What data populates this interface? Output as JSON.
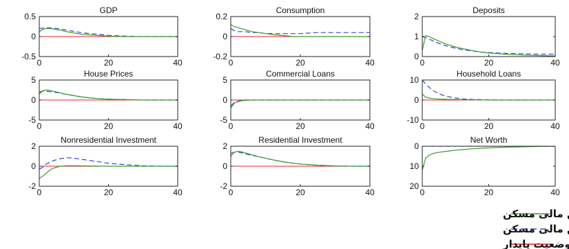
{
  "colors": {
    "with_housing_finance": "#3a9a2e",
    "without_housing_finance": "#3446c8",
    "steady_state": "#e8202a",
    "axis": "#222222"
  },
  "legend": {
    "entries": [
      {
        "label": "مدل با وجود تأمین مالی مسکن",
        "style": "solid",
        "color": "#3a9a2e"
      },
      {
        "label": "مدل بدون وجود تأمین مالی مسکن",
        "style": "dashed",
        "color": "#3446c8"
      },
      {
        "label": "وضعیت پایدار",
        "style": "solid",
        "color": "#e8202a"
      }
    ]
  },
  "chart_data": [
    {
      "type": "line",
      "title": "GDP",
      "xlim": [
        0,
        40
      ],
      "ylim": [
        -0.5,
        0.5
      ],
      "xticks": [
        "0",
        "20",
        "40"
      ],
      "yticks": [
        "0.5",
        "0",
        "-0.5"
      ],
      "series": [
        {
          "key": "with",
          "x": [
            0,
            1,
            2,
            3,
            4,
            6,
            8,
            10,
            12,
            15,
            18,
            20,
            25,
            30,
            35,
            40
          ],
          "y": [
            0.12,
            0.18,
            0.2,
            0.2,
            0.19,
            0.16,
            0.12,
            0.09,
            0.06,
            0.04,
            0.02,
            0.01,
            0.0,
            0.0,
            0.0,
            0.0
          ]
        },
        {
          "key": "without",
          "x": [
            0,
            1,
            2,
            3,
            4,
            6,
            8,
            10,
            12,
            15,
            18,
            20,
            25,
            30,
            35,
            40
          ],
          "y": [
            0.2,
            0.21,
            0.22,
            0.22,
            0.21,
            0.19,
            0.16,
            0.13,
            0.1,
            0.07,
            0.05,
            0.03,
            0.01,
            0.0,
            0.0,
            0.0
          ]
        },
        {
          "key": "steady",
          "x": [
            0,
            40
          ],
          "y": [
            0,
            0
          ]
        }
      ]
    },
    {
      "type": "line",
      "title": "Consumption",
      "xlim": [
        0,
        40
      ],
      "ylim": [
        -0.2,
        0.2
      ],
      "xticks": [
        "0",
        "20",
        "40"
      ],
      "yticks": [
        "0.2",
        "0",
        "-0.2"
      ],
      "series": [
        {
          "key": "with",
          "x": [
            0,
            1,
            2,
            3,
            4,
            6,
            8,
            10,
            12,
            15,
            18,
            20,
            25,
            30,
            35,
            40
          ],
          "y": [
            0.12,
            0.1,
            0.09,
            0.08,
            0.07,
            0.05,
            0.04,
            0.03,
            0.02,
            0.01,
            0.0,
            0.0,
            0.0,
            0.0,
            0.0,
            0.0
          ]
        },
        {
          "key": "without",
          "x": [
            0,
            1,
            2,
            3,
            4,
            6,
            8,
            10,
            12,
            15,
            18,
            20,
            25,
            30,
            35,
            40
          ],
          "y": [
            0.08,
            0.06,
            0.05,
            0.05,
            0.05,
            0.04,
            0.04,
            0.03,
            0.03,
            0.03,
            0.03,
            0.03,
            0.04,
            0.04,
            0.04,
            0.04
          ]
        },
        {
          "key": "steady",
          "x": [
            0,
            40
          ],
          "y": [
            0,
            0
          ]
        }
      ]
    },
    {
      "type": "line",
      "title": "Deposits",
      "xlim": [
        0,
        40
      ],
      "ylim": [
        0,
        2
      ],
      "xticks": [
        "0",
        "20",
        "40"
      ],
      "yticks": [
        "2",
        "1",
        "0"
      ],
      "series": [
        {
          "key": "with",
          "x": [
            0,
            1,
            2,
            3,
            4,
            6,
            8,
            10,
            12,
            15,
            18,
            20,
            25,
            30,
            35,
            40
          ],
          "y": [
            0.3,
            1.05,
            1.0,
            0.92,
            0.85,
            0.7,
            0.58,
            0.48,
            0.4,
            0.3,
            0.22,
            0.18,
            0.12,
            0.08,
            0.05,
            0.03
          ]
        },
        {
          "key": "without",
          "x": [
            0,
            1,
            2,
            3,
            4,
            6,
            8,
            10,
            12,
            15,
            18,
            20,
            25,
            30,
            35,
            40
          ],
          "y": [
            1.0,
            0.95,
            0.88,
            0.8,
            0.72,
            0.6,
            0.5,
            0.42,
            0.35,
            0.28,
            0.22,
            0.2,
            0.16,
            0.14,
            0.12,
            0.12
          ]
        },
        {
          "key": "steady",
          "x": [
            0,
            40
          ],
          "y": [
            0,
            0
          ]
        }
      ]
    },
    {
      "type": "line",
      "title": "House Prices",
      "xlim": [
        0,
        40
      ],
      "ylim": [
        -5,
        5
      ],
      "xticks": [
        "0",
        "20",
        "40"
      ],
      "yticks": [
        "5",
        "0",
        "-5"
      ],
      "series": [
        {
          "key": "with",
          "x": [
            0,
            1,
            2,
            3,
            4,
            6,
            8,
            10,
            12,
            15,
            18,
            20,
            25,
            30,
            35,
            40
          ],
          "y": [
            1.5,
            2.3,
            2.5,
            2.4,
            2.2,
            1.8,
            1.4,
            1.1,
            0.8,
            0.5,
            0.3,
            0.2,
            0.1,
            0.0,
            0.0,
            0.0
          ]
        },
        {
          "key": "without",
          "x": [
            0,
            1,
            2,
            3,
            4,
            6,
            8,
            10,
            12,
            15,
            18,
            20,
            25,
            30,
            35,
            40
          ],
          "y": [
            2.0,
            2.2,
            2.2,
            2.1,
            2.0,
            1.7,
            1.4,
            1.1,
            0.8,
            0.5,
            0.3,
            0.2,
            0.1,
            0.0,
            0.0,
            0.0
          ]
        },
        {
          "key": "steady",
          "x": [
            0,
            40
          ],
          "y": [
            0,
            0
          ]
        }
      ]
    },
    {
      "type": "line",
      "title": "Commercial Loans",
      "xlim": [
        0,
        40
      ],
      "ylim": [
        -5,
        5
      ],
      "xticks": [
        "0",
        "20",
        "40"
      ],
      "yticks": [
        "5",
        "0",
        "-5"
      ],
      "series": [
        {
          "key": "with",
          "x": [
            0,
            1,
            2,
            3,
            4,
            6,
            8,
            10,
            15,
            20,
            25,
            30,
            35,
            40
          ],
          "y": [
            -2.0,
            -0.8,
            -0.4,
            -0.2,
            -0.1,
            0.0,
            0.0,
            0.0,
            0.0,
            0.0,
            0.0,
            0.0,
            0.0,
            0.0
          ]
        },
        {
          "key": "without",
          "x": [
            0,
            1,
            2,
            3,
            4,
            6,
            8,
            10,
            15,
            20,
            25,
            30,
            35,
            40
          ],
          "y": [
            -1.5,
            -0.6,
            -0.3,
            -0.1,
            0.0,
            0.0,
            0.0,
            0.0,
            0.0,
            0.0,
            0.0,
            0.0,
            0.0,
            0.0
          ]
        },
        {
          "key": "steady",
          "x": [
            0,
            40
          ],
          "y": [
            0,
            0
          ]
        }
      ]
    },
    {
      "type": "line",
      "title": "Household Loans",
      "xlim": [
        0,
        40
      ],
      "ylim": [
        -10,
        10
      ],
      "xticks": [
        "0",
        "20",
        "40"
      ],
      "yticks": [
        "10",
        "0",
        "-10"
      ],
      "series": [
        {
          "key": "with",
          "x": [
            0,
            1,
            2,
            3,
            4,
            6,
            8,
            10,
            15,
            20,
            25,
            30,
            35,
            40
          ],
          "y": [
            3.0,
            1.5,
            1.0,
            0.8,
            0.6,
            0.4,
            0.3,
            0.2,
            0.1,
            0.0,
            0.0,
            0.0,
            0.0,
            0.0
          ]
        },
        {
          "key": "without",
          "x": [
            0,
            1,
            2,
            3,
            4,
            6,
            8,
            10,
            12,
            15,
            20,
            25,
            30,
            35,
            40
          ],
          "y": [
            10,
            8,
            6.5,
            5,
            4,
            2.5,
            1.6,
            1.0,
            0.6,
            0.3,
            0.1,
            0.0,
            0.0,
            0.0,
            0.0
          ]
        },
        {
          "key": "steady",
          "x": [
            0,
            40
          ],
          "y": [
            0,
            0
          ]
        }
      ]
    },
    {
      "type": "line",
      "title": "Nonresidential Investment",
      "xlim": [
        0,
        40
      ],
      "ylim": [
        -2,
        2
      ],
      "xticks": [
        "0",
        "20",
        "40"
      ],
      "yticks": [
        "2",
        "0",
        "-2"
      ],
      "series": [
        {
          "key": "with",
          "x": [
            0,
            1,
            2,
            3,
            4,
            6,
            8,
            10,
            15,
            20,
            25,
            30,
            35,
            40
          ],
          "y": [
            -1.2,
            -1.0,
            -0.7,
            -0.4,
            -0.2,
            0.0,
            0.05,
            0.05,
            0.03,
            0.0,
            0.0,
            0.0,
            0.0,
            0.0
          ]
        },
        {
          "key": "without",
          "x": [
            0,
            1,
            2,
            3,
            4,
            6,
            8,
            10,
            12,
            15,
            18,
            20,
            25,
            30,
            35,
            40
          ],
          "y": [
            -0.3,
            -0.1,
            0.2,
            0.4,
            0.55,
            0.75,
            0.85,
            0.8,
            0.7,
            0.55,
            0.4,
            0.3,
            0.15,
            0.05,
            0.0,
            0.0
          ]
        },
        {
          "key": "steady",
          "x": [
            0,
            40
          ],
          "y": [
            0,
            0
          ]
        }
      ]
    },
    {
      "type": "line",
      "title": "Residential Investment",
      "xlim": [
        0,
        40
      ],
      "ylim": [
        -2,
        2
      ],
      "xticks": [
        "0",
        "20",
        "40"
      ],
      "yticks": [
        "2",
        "0",
        "-2"
      ],
      "series": [
        {
          "key": "with",
          "x": [
            0,
            1,
            2,
            3,
            4,
            6,
            8,
            10,
            12,
            15,
            18,
            20,
            25,
            30,
            35,
            40
          ],
          "y": [
            1.0,
            1.4,
            1.5,
            1.45,
            1.35,
            1.15,
            0.95,
            0.8,
            0.65,
            0.45,
            0.3,
            0.22,
            0.1,
            0.03,
            0.0,
            0.0
          ]
        },
        {
          "key": "without",
          "x": [
            0,
            1,
            2,
            3,
            4,
            6,
            8,
            10,
            12,
            15,
            18,
            20,
            25,
            30,
            35,
            40
          ],
          "y": [
            1.3,
            1.4,
            1.4,
            1.35,
            1.25,
            1.1,
            0.95,
            0.8,
            0.65,
            0.45,
            0.3,
            0.22,
            0.1,
            0.03,
            0.0,
            0.0
          ]
        },
        {
          "key": "steady",
          "x": [
            0,
            40
          ],
          "y": [
            0,
            0
          ]
        }
      ]
    },
    {
      "type": "line",
      "title": "Net Worth",
      "xlim": [
        0,
        40
      ],
      "ylim": [
        0,
        20
      ],
      "y_inverted": true,
      "xticks": [
        "0",
        "20",
        "40"
      ],
      "yticks": [
        "0",
        "10",
        "20"
      ],
      "series": [
        {
          "key": "with",
          "x": [
            0,
            1,
            2,
            3,
            4,
            6,
            8,
            10,
            12,
            15,
            18,
            20,
            25,
            30,
            35,
            40
          ],
          "y": [
            12,
            6,
            4.5,
            3.8,
            3.3,
            2.8,
            2.4,
            2.0,
            1.7,
            1.3,
            1.0,
            0.8,
            0.5,
            0.3,
            0.1,
            0.0
          ]
        },
        {
          "key": "without",
          "x": [
            0,
            1,
            2,
            3,
            4,
            6,
            8,
            10,
            12,
            15,
            18,
            20,
            25,
            30,
            35,
            40
          ],
          "y": [
            0,
            0,
            0,
            0,
            0,
            0,
            0,
            0,
            0,
            0,
            0,
            0,
            0,
            0,
            0,
            0
          ]
        },
        {
          "key": "steady",
          "x": [
            0,
            40
          ],
          "y": [
            0,
            0
          ]
        }
      ]
    }
  ]
}
